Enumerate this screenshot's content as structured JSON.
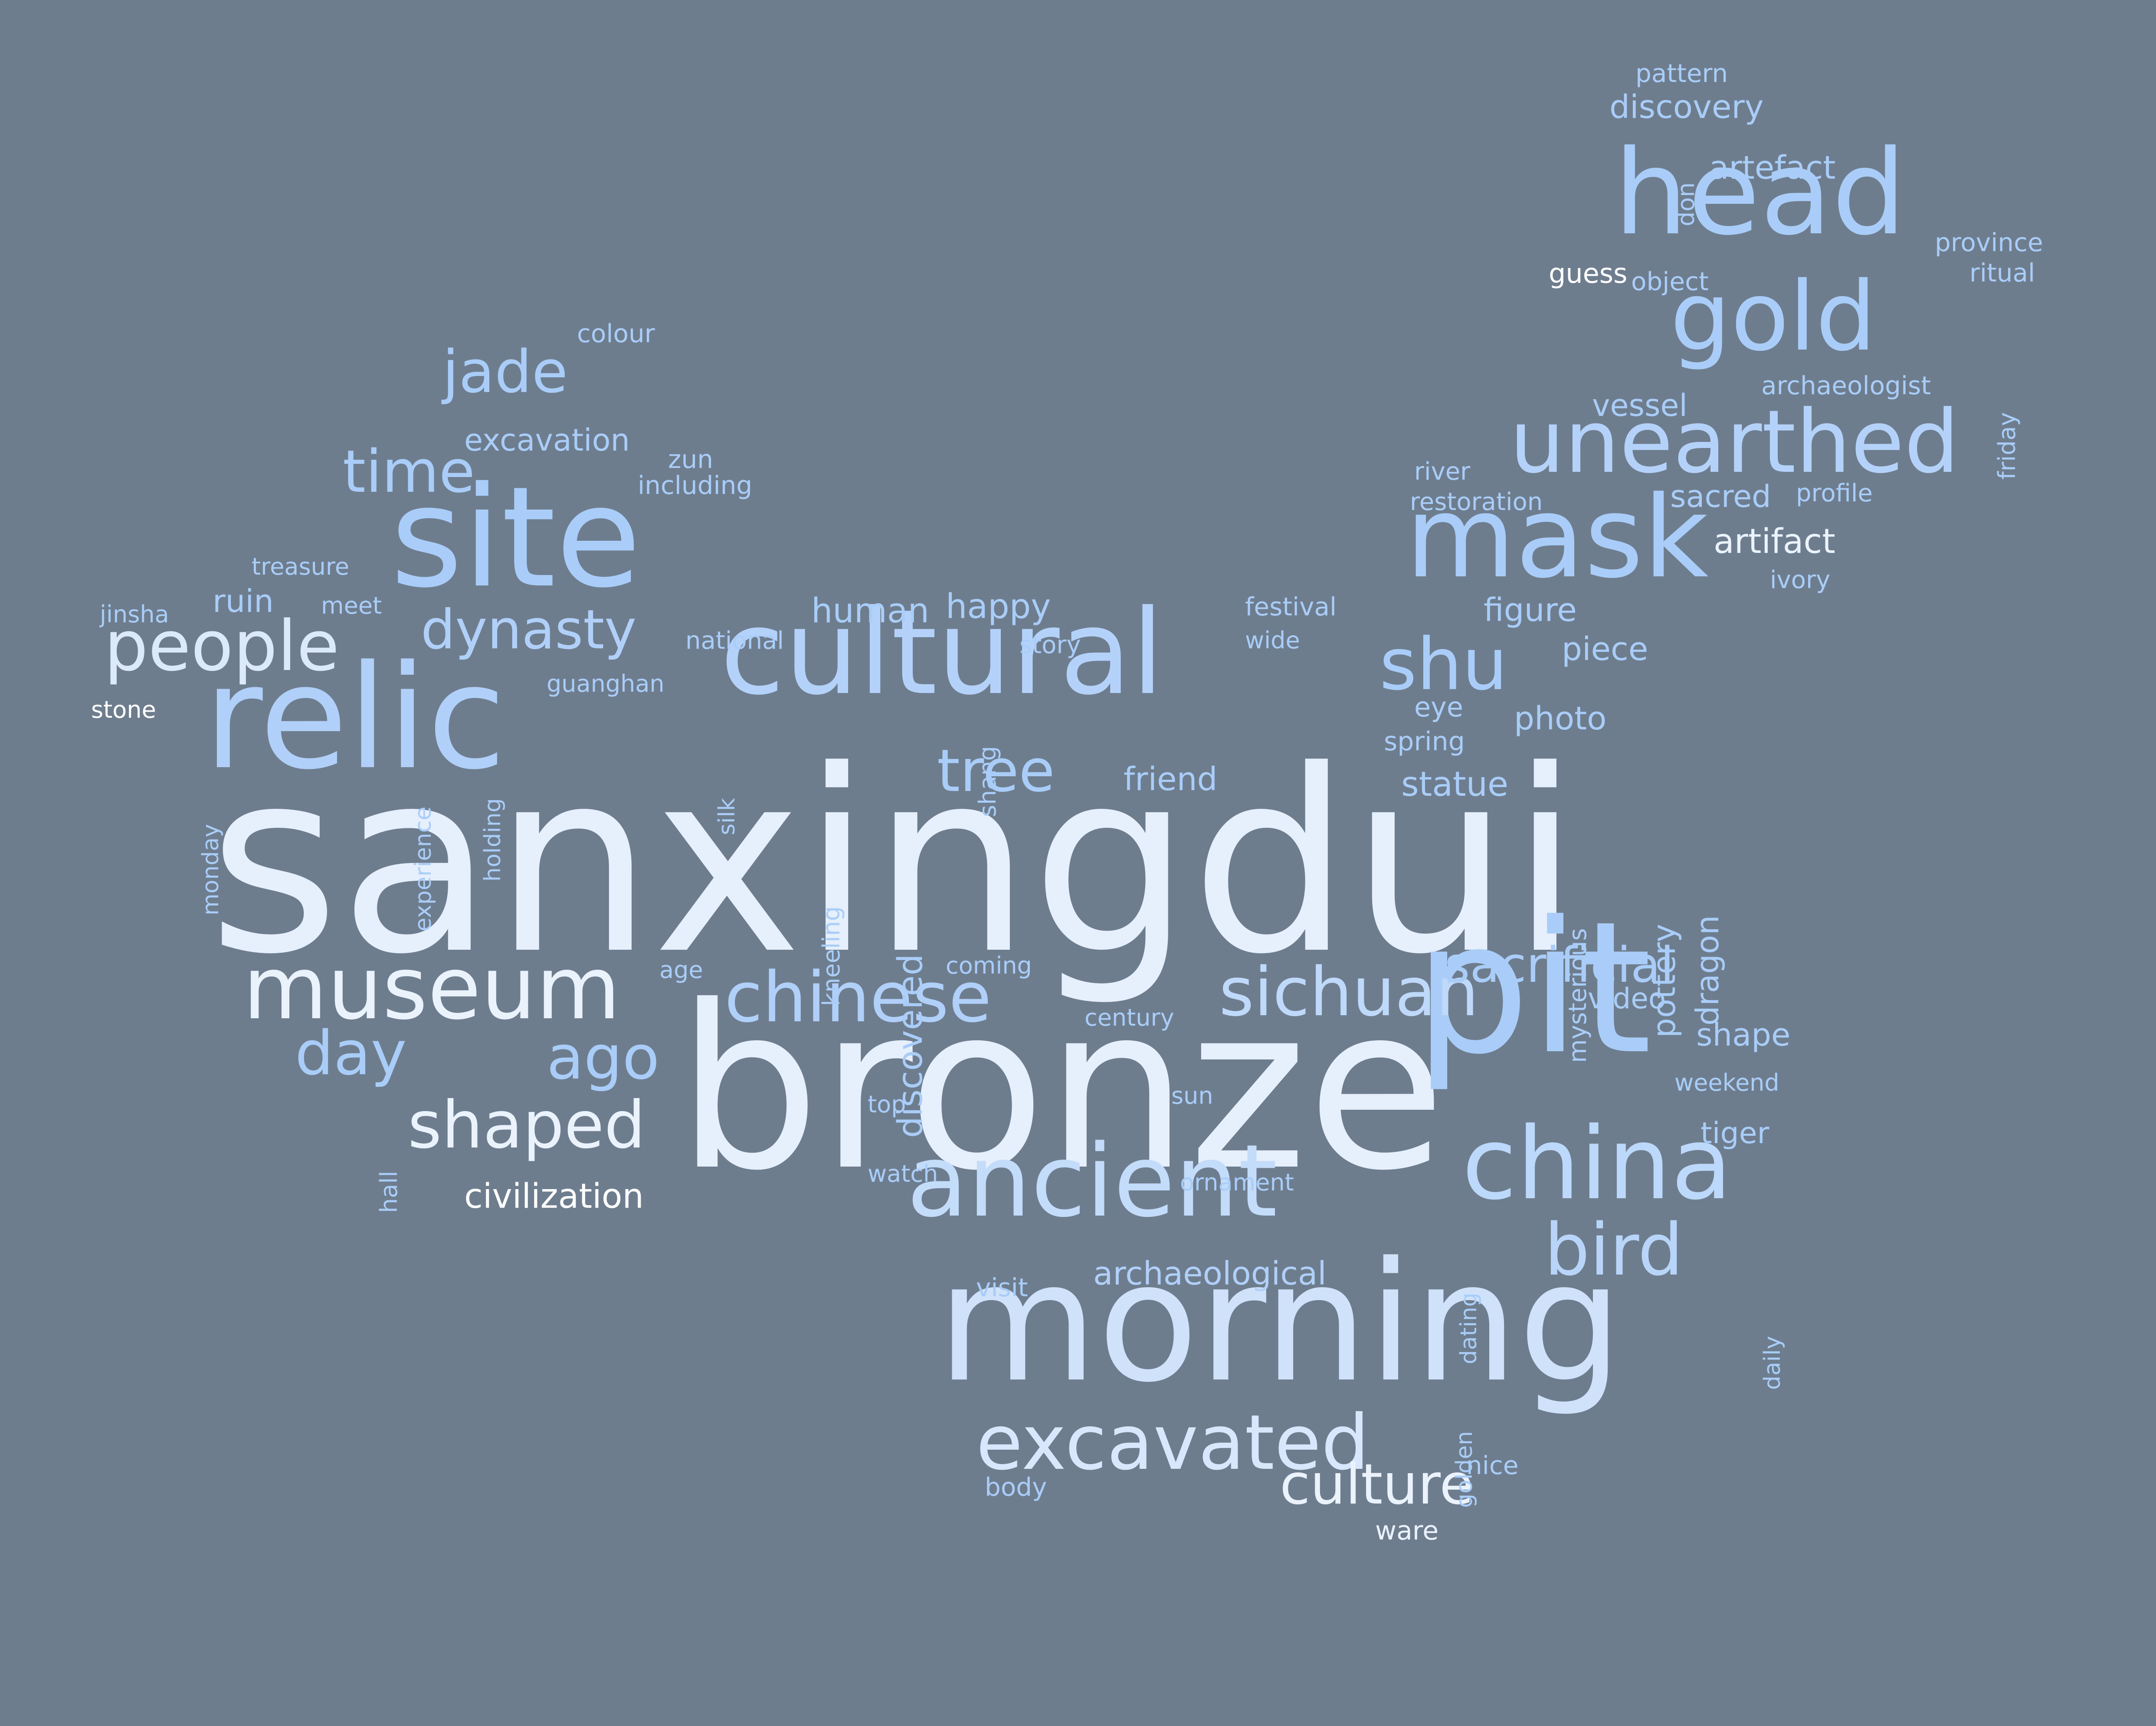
{
  "colors": {
    "background": "#6e7d8e",
    "palette": [
      "#ffffff",
      "#eaf2fc",
      "#d8e7fb",
      "#c6ddfa",
      "#b0d0f9",
      "#9fc4f6"
    ]
  },
  "words": [
    {
      "text": "sanxingdui",
      "weight": 1.0,
      "color": "#e6effc"
    },
    {
      "text": "bronze",
      "weight": 0.92,
      "color": "#e6effc"
    },
    {
      "text": "pit",
      "weight": 0.74,
      "color": "#a9cdf8"
    },
    {
      "text": "morning",
      "weight": 0.72,
      "color": "#cfe2fa"
    },
    {
      "text": "relic",
      "weight": 0.6,
      "color": "#b0d0f9"
    },
    {
      "text": "site",
      "weight": 0.6,
      "color": "#a9cdf8"
    },
    {
      "text": "cultural",
      "weight": 0.48,
      "color": "#b4d2f9"
    },
    {
      "text": "head",
      "weight": 0.48,
      "color": "#a9cdf8"
    },
    {
      "text": "mask",
      "weight": 0.44,
      "color": "#a9cdf8"
    },
    {
      "text": "ancient",
      "weight": 0.42,
      "color": "#c3dcfa"
    },
    {
      "text": "china",
      "weight": 0.42,
      "color": "#bcd8fa"
    },
    {
      "text": "gold",
      "weight": 0.4,
      "color": "#a9cdf8"
    },
    {
      "text": "unearthed",
      "weight": 0.34,
      "color": "#b4d2f9"
    },
    {
      "text": "museum",
      "weight": 0.32,
      "color": "#eaf2fc"
    },
    {
      "text": "excavated",
      "weight": 0.3,
      "color": "#d8e7fb"
    },
    {
      "text": "bird",
      "weight": 0.28,
      "color": "#b8d5f9"
    },
    {
      "text": "sichuan",
      "weight": 0.26,
      "color": "#bfd9fa"
    },
    {
      "text": "shu",
      "weight": 0.26,
      "color": "#a9cdf8"
    },
    {
      "text": "chinese",
      "weight": 0.26,
      "color": "#b0d0f9"
    },
    {
      "text": "people",
      "weight": 0.26,
      "color": "#dbe9fb"
    },
    {
      "text": "shaped",
      "weight": 0.26,
      "color": "#eaf2fc"
    },
    {
      "text": "day",
      "weight": 0.24,
      "color": "#a9cdf8"
    },
    {
      "text": "ago",
      "weight": 0.24,
      "color": "#a9cdf8"
    },
    {
      "text": "jade",
      "weight": 0.24,
      "color": "#a9cdf8"
    },
    {
      "text": "time",
      "weight": 0.24,
      "color": "#a9cdf8"
    },
    {
      "text": "tree",
      "weight": 0.22,
      "color": "#a9cdf8"
    },
    {
      "text": "culture",
      "weight": 0.22,
      "color": "#eaf2fc"
    },
    {
      "text": "dynasty",
      "weight": 0.2,
      "color": "#b0d0f9"
    },
    {
      "text": "sacrificial",
      "weight": 0.2,
      "color": "#a9cdf8"
    },
    {
      "text": "civilization",
      "weight": 0.14,
      "color": "#ffffff"
    },
    {
      "text": "discovered",
      "weight": 0.14,
      "color": "#a9cdf8"
    },
    {
      "text": "archaeological",
      "weight": 0.14,
      "color": "#b0d0f9"
    },
    {
      "text": "statue",
      "weight": 0.14,
      "color": "#a9cdf8"
    },
    {
      "text": "human",
      "weight": 0.14,
      "color": "#a9cdf8"
    },
    {
      "text": "happy",
      "weight": 0.14,
      "color": "#a9cdf8"
    },
    {
      "text": "artifact",
      "weight": 0.14,
      "color": "#eaf2fc"
    },
    {
      "text": "figure",
      "weight": 0.14,
      "color": "#a9cdf8"
    },
    {
      "text": "piece",
      "weight": 0.14,
      "color": "#a9cdf8"
    },
    {
      "text": "photo",
      "weight": 0.14,
      "color": "#a9cdf8"
    },
    {
      "text": "friend",
      "weight": 0.14,
      "color": "#a9cdf8"
    },
    {
      "text": "excavation",
      "weight": 0.14,
      "color": "#a9cdf8"
    },
    {
      "text": "discovery",
      "weight": 0.14,
      "color": "#a9cdf8"
    },
    {
      "text": "artefact",
      "weight": 0.14,
      "color": "#a9cdf8"
    },
    {
      "text": "vessel",
      "weight": 0.14,
      "color": "#a9cdf8"
    },
    {
      "text": "sacred",
      "weight": 0.14,
      "color": "#a9cdf8"
    },
    {
      "text": "ruin",
      "weight": 0.14,
      "color": "#a9cdf8"
    },
    {
      "text": "pottery",
      "weight": 0.14,
      "color": "#a9cdf8"
    },
    {
      "text": "dragon",
      "weight": 0.14,
      "color": "#a9cdf8"
    },
    {
      "text": "shape",
      "weight": 0.14,
      "color": "#a9cdf8"
    },
    {
      "text": "tiger",
      "weight": 0.14,
      "color": "#a9cdf8"
    },
    {
      "text": "video",
      "weight": 0.12,
      "color": "#a9cdf8"
    },
    {
      "text": "ware",
      "weight": 0.12,
      "color": "#eaf2fc"
    },
    {
      "text": "eye",
      "weight": 0.12,
      "color": "#a9cdf8"
    },
    {
      "text": "spring",
      "weight": 0.12,
      "color": "#a9cdf8"
    },
    {
      "text": "mysterious",
      "weight": 0.1,
      "color": "#a9cdf8"
    },
    {
      "text": "province",
      "weight": 0.1,
      "color": "#a9cdf8"
    },
    {
      "text": "ritual",
      "weight": 0.1,
      "color": "#a9cdf8"
    },
    {
      "text": "archaeologist",
      "weight": 0.1,
      "color": "#a9cdf8"
    },
    {
      "text": "friday",
      "weight": 0.1,
      "color": "#a9cdf8"
    },
    {
      "text": "object",
      "weight": 0.1,
      "color": "#a9cdf8"
    },
    {
      "text": "guess",
      "weight": 0.1,
      "color": "#ffffff"
    },
    {
      "text": "pattern",
      "weight": 0.1,
      "color": "#a9cdf8"
    },
    {
      "text": "don",
      "weight": 0.1,
      "color": "#a9cdf8"
    },
    {
      "text": "river",
      "weight": 0.1,
      "color": "#a9cdf8"
    },
    {
      "text": "restoration",
      "weight": 0.1,
      "color": "#a9cdf8"
    },
    {
      "text": "profile",
      "weight": 0.1,
      "color": "#a9cdf8"
    },
    {
      "text": "ivory",
      "weight": 0.1,
      "color": "#a9cdf8"
    },
    {
      "text": "festival",
      "weight": 0.1,
      "color": "#a9cdf8"
    },
    {
      "text": "wide",
      "weight": 0.1,
      "color": "#a9cdf8"
    },
    {
      "text": "story",
      "weight": 0.1,
      "color": "#a9cdf8"
    },
    {
      "text": "national",
      "weight": 0.1,
      "color": "#a9cdf8"
    },
    {
      "text": "guanghan",
      "weight": 0.1,
      "color": "#a9cdf8"
    },
    {
      "text": "jinsha",
      "weight": 0.1,
      "color": "#a9cdf8"
    },
    {
      "text": "treasure",
      "weight": 0.1,
      "color": "#a9cdf8"
    },
    {
      "text": "meet",
      "weight": 0.1,
      "color": "#a9cdf8"
    },
    {
      "text": "stone",
      "weight": 0.1,
      "color": "#ffffff"
    },
    {
      "text": "monday",
      "weight": 0.1,
      "color": "#a9cdf8"
    },
    {
      "text": "experience",
      "weight": 0.1,
      "color": "#a9cdf8"
    },
    {
      "text": "holding",
      "weight": 0.1,
      "color": "#a9cdf8"
    },
    {
      "text": "silk",
      "weight": 0.1,
      "color": "#a9cdf8"
    },
    {
      "text": "shang",
      "weight": 0.1,
      "color": "#a9cdf8"
    },
    {
      "text": "kneeling",
      "weight": 0.1,
      "color": "#a9cdf8"
    },
    {
      "text": "colour",
      "weight": 0.1,
      "color": "#a9cdf8"
    },
    {
      "text": "zun",
      "weight": 0.1,
      "color": "#a9cdf8"
    },
    {
      "text": "including",
      "weight": 0.1,
      "color": "#a9cdf8"
    },
    {
      "text": "age",
      "weight": 0.08,
      "color": "#a9cdf8"
    },
    {
      "text": "coming",
      "weight": 0.08,
      "color": "#a9cdf8"
    },
    {
      "text": "century",
      "weight": 0.08,
      "color": "#a9cdf8"
    },
    {
      "text": "sun",
      "weight": 0.08,
      "color": "#a9cdf8"
    },
    {
      "text": "top",
      "weight": 0.08,
      "color": "#a9cdf8"
    },
    {
      "text": "watch",
      "weight": 0.08,
      "color": "#a9cdf8"
    },
    {
      "text": "ornament",
      "weight": 0.08,
      "color": "#a9cdf8"
    },
    {
      "text": "weekend",
      "weight": 0.08,
      "color": "#a9cdf8"
    },
    {
      "text": "dating",
      "weight": 0.08,
      "color": "#a9cdf8"
    },
    {
      "text": "daily",
      "weight": 0.08,
      "color": "#a9cdf8"
    },
    {
      "text": "golden",
      "weight": 0.08,
      "color": "#a9cdf8"
    },
    {
      "text": "visit",
      "weight": 0.08,
      "color": "#a9cdf8"
    },
    {
      "text": "nice",
      "weight": 0.08,
      "color": "#a9cdf8"
    },
    {
      "text": "body",
      "weight": 0.08,
      "color": "#a9cdf8"
    },
    {
      "text": "hall",
      "weight": 0.08,
      "color": "#a9cdf8"
    }
  ]
}
